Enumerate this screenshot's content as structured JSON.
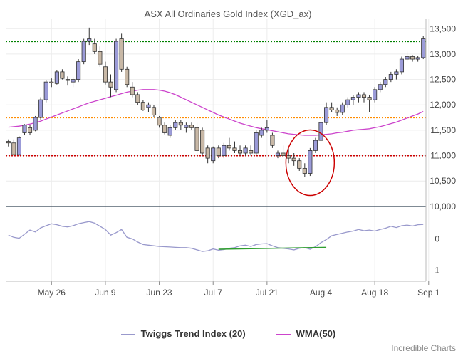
{
  "chart_data": {
    "type": "candlestick",
    "title": "ASX All Ordinaries Gold Index (XGD_ax)",
    "credit": "Incredible Charts",
    "price_axis": {
      "ylim": [
        9900,
        13700
      ],
      "ticks": [
        10000,
        10500,
        11000,
        11500,
        12000,
        12500,
        13000,
        13500
      ],
      "tick_labels": [
        "10,000",
        "10,500",
        "11,000",
        "11,500",
        "12,000",
        "12,500",
        "13,000",
        "13,500"
      ]
    },
    "indicator_axis": {
      "ylim": [
        -1.35,
        0.85
      ],
      "ticks": [
        0,
        -1
      ],
      "tick_labels": [
        "0",
        "-1"
      ]
    },
    "x_axis": {
      "labels": [
        "May 26",
        "Jun 9",
        "Jun 23",
        "Jul 7",
        "Jul 21",
        "Aug 4",
        "Aug 18",
        "Sep 1"
      ],
      "label_index": [
        8,
        18,
        28,
        38,
        48,
        58,
        68,
        78
      ]
    },
    "horizontal_levels": [
      {
        "value": 13250,
        "color": "#008000",
        "style": "dotted"
      },
      {
        "value": 11750,
        "color": "#ff8c00",
        "style": "dotted"
      },
      {
        "value": 11000,
        "color": "#cc0000",
        "style": "dotted"
      },
      {
        "value": 10000,
        "color": "#334455",
        "style": "solid"
      }
    ],
    "candles": [
      [
        11280,
        11320,
        11180,
        11250
      ],
      [
        11250,
        11320,
        11000,
        11020
      ],
      [
        11020,
        11380,
        11000,
        11350
      ],
      [
        11450,
        11620,
        11400,
        11600
      ],
      [
        11550,
        11600,
        11400,
        11450
      ],
      [
        11500,
        11780,
        11480,
        11750
      ],
      [
        11750,
        12150,
        11700,
        12100
      ],
      [
        12100,
        12480,
        12050,
        12450
      ],
      [
        12450,
        12520,
        12350,
        12430
      ],
      [
        12420,
        12680,
        12400,
        12650
      ],
      [
        12650,
        12700,
        12500,
        12520
      ],
      [
        12500,
        12560,
        12380,
        12480
      ],
      [
        12450,
        12550,
        12350,
        12500
      ],
      [
        12500,
        12900,
        12450,
        12850
      ],
      [
        12850,
        13300,
        12800,
        13250
      ],
      [
        13250,
        13520,
        13180,
        13300
      ],
      [
        13200,
        13300,
        13000,
        13050
      ],
      [
        13050,
        13150,
        12750,
        12800
      ],
      [
        12750,
        12850,
        12400,
        12450
      ],
      [
        12450,
        12600,
        12150,
        12350
      ],
      [
        12300,
        13300,
        12250,
        13250
      ],
      [
        13300,
        13400,
        12650,
        12700
      ],
      [
        12700,
        12750,
        12350,
        12400
      ],
      [
        12350,
        12450,
        12150,
        12200
      ],
      [
        12200,
        12250,
        12000,
        12050
      ],
      [
        12050,
        12100,
        11880,
        11900
      ],
      [
        11950,
        12050,
        11850,
        12000
      ],
      [
        11950,
        12000,
        11750,
        11800
      ],
      [
        11750,
        11780,
        11550,
        11600
      ],
      [
        11600,
        11650,
        11420,
        11450
      ],
      [
        11400,
        11600,
        11350,
        11550
      ],
      [
        11550,
        11700,
        11500,
        11650
      ],
      [
        11650,
        11700,
        11500,
        11600
      ],
      [
        11550,
        11650,
        11450,
        11600
      ],
      [
        11600,
        11650,
        11500,
        11550
      ],
      [
        11550,
        11650,
        11000,
        11100
      ],
      [
        11500,
        11550,
        11000,
        11050
      ],
      [
        11150,
        11200,
        10850,
        10950
      ],
      [
        10900,
        11180,
        10850,
        11150
      ],
      [
        11150,
        11200,
        10950,
        11000
      ],
      [
        11000,
        11250,
        10950,
        11200
      ],
      [
        11200,
        11350,
        11100,
        11150
      ],
      [
        11150,
        11280,
        11050,
        11100
      ],
      [
        11100,
        11200,
        11000,
        11050
      ],
      [
        11050,
        11200,
        11000,
        11150
      ],
      [
        11100,
        11200,
        11000,
        11050
      ],
      [
        11050,
        11500,
        11000,
        11450
      ],
      [
        11400,
        11550,
        11350,
        11500
      ],
      [
        11500,
        11700,
        11450,
        11550
      ],
      [
        11400,
        11450,
        11150,
        11200
      ],
      [
        11000,
        11100,
        10950,
        11050
      ],
      [
        11050,
        11200,
        10980,
        11000
      ],
      [
        11000,
        11150,
        10850,
        10950
      ],
      [
        10950,
        11050,
        10800,
        10900
      ],
      [
        10900,
        10950,
        10700,
        10750
      ],
      [
        10750,
        10850,
        10580,
        10650
      ],
      [
        10650,
        11150,
        10600,
        11100
      ],
      [
        11100,
        11350,
        11050,
        11300
      ],
      [
        11300,
        11700,
        11250,
        11650
      ],
      [
        11650,
        12050,
        11600,
        11950
      ],
      [
        11950,
        12050,
        11850,
        11900
      ],
      [
        11900,
        11950,
        11780,
        11850
      ],
      [
        11850,
        12050,
        11800,
        12000
      ],
      [
        12000,
        12150,
        11950,
        12100
      ],
      [
        12100,
        12200,
        12000,
        12150
      ],
      [
        12150,
        12250,
        12050,
        12200
      ],
      [
        12200,
        12250,
        12050,
        12150
      ],
      [
        12150,
        12200,
        11850,
        12100
      ],
      [
        12100,
        12350,
        12050,
        12300
      ],
      [
        12300,
        12450,
        12250,
        12400
      ],
      [
        12400,
        12550,
        12350,
        12500
      ],
      [
        12500,
        12650,
        12450,
        12600
      ],
      [
        12600,
        12700,
        12500,
        12650
      ],
      [
        12650,
        12950,
        12600,
        12900
      ],
      [
        12900,
        13050,
        12850,
        12950
      ],
      [
        12950,
        12980,
        12850,
        12900
      ],
      [
        12900,
        12960,
        12850,
        12930
      ],
      [
        12930,
        13350,
        12900,
        13300
      ]
    ],
    "wma": [
      11560,
      11570,
      11580,
      11600,
      11620,
      11650,
      11680,
      11720,
      11760,
      11800,
      11840,
      11880,
      11920,
      11960,
      12000,
      12040,
      12070,
      12100,
      12130,
      12160,
      12190,
      12220,
      12250,
      12270,
      12290,
      12300,
      12300,
      12300,
      12290,
      12270,
      12240,
      12200,
      12150,
      12100,
      12050,
      12000,
      11950,
      11900,
      11850,
      11800,
      11760,
      11720,
      11680,
      11640,
      11610,
      11580,
      11550,
      11530,
      11510,
      11490,
      11470,
      11450,
      11430,
      11420,
      11410,
      11400,
      11400,
      11400,
      11410,
      11420,
      11430,
      11450,
      11460,
      11480,
      11500,
      11510,
      11520,
      11530,
      11550,
      11570,
      11600,
      11630,
      11660,
      11700,
      11740,
      11780,
      11820,
      11870
    ],
    "twiggs": [
      0.12,
      0.05,
      0.02,
      0.15,
      0.28,
      0.22,
      0.35,
      0.42,
      0.48,
      0.45,
      0.4,
      0.38,
      0.42,
      0.48,
      0.52,
      0.55,
      0.5,
      0.4,
      0.3,
      0.12,
      0.2,
      0.3,
      0.05,
      0.0,
      -0.1,
      -0.18,
      -0.2,
      -0.22,
      -0.24,
      -0.25,
      -0.26,
      -0.27,
      -0.28,
      -0.28,
      -0.3,
      -0.35,
      -0.4,
      -0.38,
      -0.32,
      -0.36,
      -0.34,
      -0.3,
      -0.28,
      -0.22,
      -0.2,
      -0.24,
      -0.18,
      -0.16,
      -0.15,
      -0.22,
      -0.28,
      -0.3,
      -0.32,
      -0.35,
      -0.3,
      -0.28,
      -0.33,
      -0.25,
      -0.12,
      -0.02,
      0.1,
      0.14,
      0.18,
      0.22,
      0.25,
      0.3,
      0.26,
      0.28,
      0.25,
      0.3,
      0.34,
      0.4,
      0.36,
      0.42,
      0.44,
      0.41,
      0.45,
      0.46
    ],
    "annotations": {
      "trendline": {
        "from_index": 39,
        "to_index": 59,
        "from_value": -0.33,
        "to_value": -0.27,
        "color": "#2e9e2e"
      },
      "ellipse": {
        "center_index": 56,
        "center_value": 10860,
        "color": "#cc0000"
      }
    },
    "legend": [
      {
        "label": "Twiggs Trend Index (20)",
        "color": "#9999cc"
      },
      {
        "label": "WMA(50)",
        "color": "#cc44cc"
      }
    ]
  }
}
